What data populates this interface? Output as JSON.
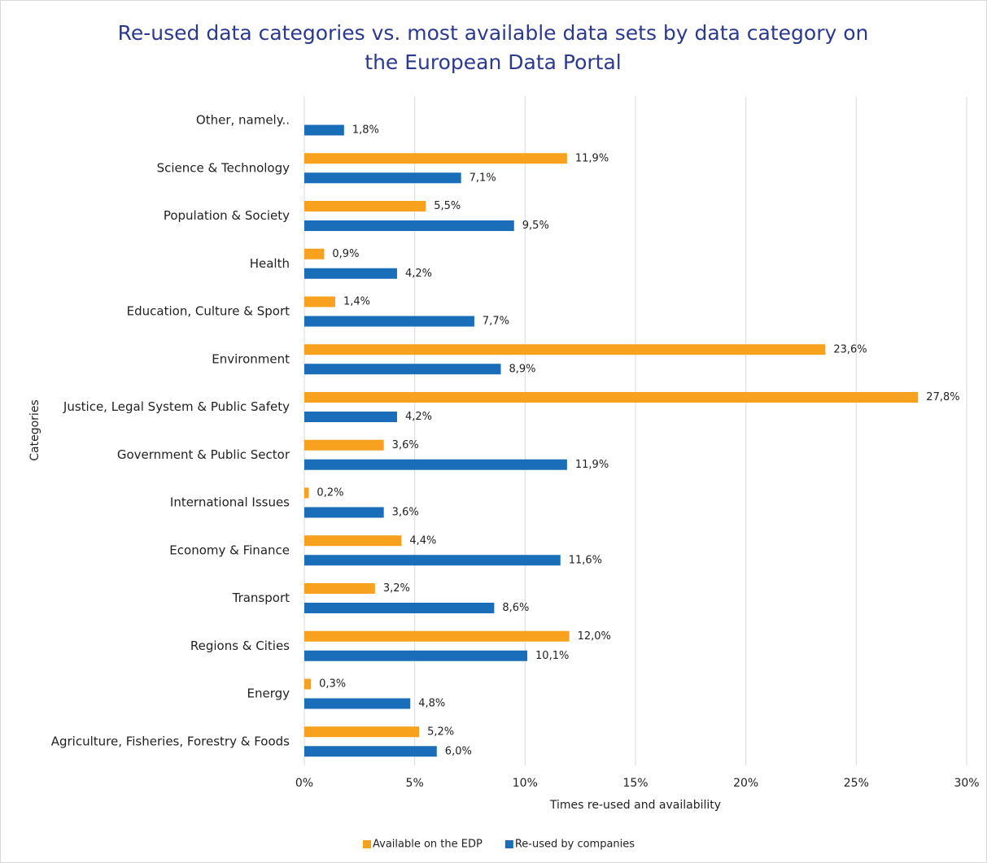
{
  "chart_data": {
    "type": "hbar",
    "title": "Re-used data categories vs. most available data sets by data category on the European Data Portal",
    "x_label": "Times re-used and availability",
    "y_label": "Categories",
    "categories": [
      "Other, namely..",
      "Science & Technology",
      "Population & Society",
      "Health",
      "Education, Culture & Sport",
      "Environment",
      "Justice, Legal System & Public Safety",
      "Government & Public Sector",
      "International Issues",
      "Economy & Finance",
      "Transport",
      "Regions & Cities",
      "Energy",
      "Agriculture, Fisheries, Forestry & Foods"
    ],
    "series": [
      {
        "name": "Available on the EDP",
        "color": "#f7a11f",
        "values": [
          null,
          11.9,
          5.5,
          0.9,
          1.4,
          23.6,
          27.8,
          3.6,
          0.2,
          4.4,
          3.2,
          12.0,
          0.3,
          5.2
        ],
        "value_labels": [
          null,
          "11,9%",
          "5,5%",
          "0,9%",
          "1,4%",
          "23,6%",
          "27,8%",
          "3,6%",
          "0,2%",
          "4,4%",
          "3,2%",
          "12,0%",
          "0,3%",
          "5,2%"
        ]
      },
      {
        "name": "Re-used by companies",
        "color": "#1a6db8",
        "values": [
          1.8,
          7.1,
          9.5,
          4.2,
          7.7,
          8.9,
          4.2,
          11.9,
          3.6,
          11.6,
          8.6,
          10.1,
          4.8,
          6.0
        ],
        "value_labels": [
          "1,8%",
          "7,1%",
          "9,5%",
          "4,2%",
          "7,7%",
          "8,9%",
          "4,2%",
          "11,9%",
          "3,6%",
          "11,6%",
          "8,6%",
          "10,1%",
          "4,8%",
          "6,0%"
        ]
      }
    ],
    "xlim": [
      0,
      30
    ],
    "xticks": [
      {
        "value": 0,
        "label": "0%"
      },
      {
        "value": 5,
        "label": "5%"
      },
      {
        "value": 10,
        "label": "10%"
      },
      {
        "value": 15,
        "label": "15%"
      },
      {
        "value": 20,
        "label": "20%"
      },
      {
        "value": 25,
        "label": "25%"
      },
      {
        "value": 30,
        "label": "30%"
      }
    ],
    "grid": true,
    "legend": "bottom"
  }
}
